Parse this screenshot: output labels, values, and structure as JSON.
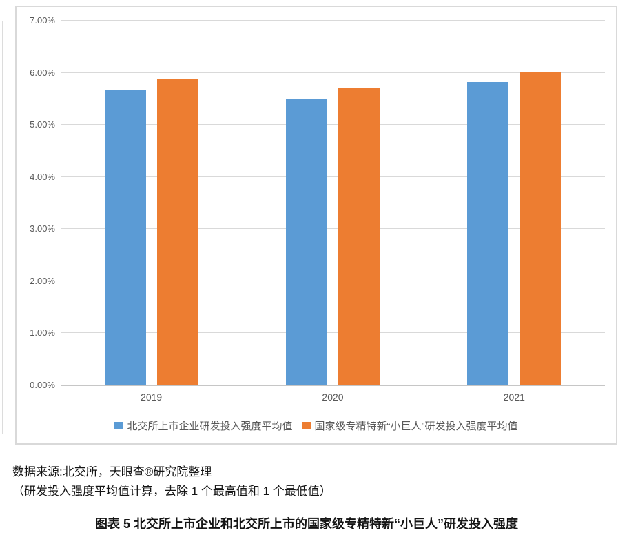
{
  "document": {
    "source_line_1": "数据来源:北交所，天眼查®研究院整理",
    "source_line_2": "（研发投入强度平均值计算，去除 1 个最高值和 1 个最低值）",
    "figure_caption": "图表 5 北交所上市企业和北交所上市的国家级专精特新“小巨人”研发投入强度"
  },
  "chart_data": {
    "type": "bar",
    "title": "",
    "categories": [
      "2019",
      "2020",
      "2021"
    ],
    "series": [
      {
        "name": "北交所上市企业研发投入强度平均值",
        "color": "#5B9BD5",
        "values": [
          5.65,
          5.49,
          5.81
        ]
      },
      {
        "name": "国家级专精特新“小巨人”研发投入强度平均值",
        "color": "#ED7D31",
        "values": [
          5.88,
          5.69,
          6.0
        ]
      }
    ],
    "unit": "%",
    "y_ticks": [
      "7.00%",
      "6.00%",
      "5.00%",
      "4.00%",
      "3.00%",
      "2.00%",
      "1.00%",
      "0.00%"
    ],
    "ylim": [
      0,
      7
    ],
    "grid": true,
    "legend_position": "bottom",
    "colors": {
      "gridline": "#D9D9D9",
      "axis_line": "#C6C6C6",
      "tick_label": "#595959",
      "frame_border": "#D9D9D9"
    }
  }
}
